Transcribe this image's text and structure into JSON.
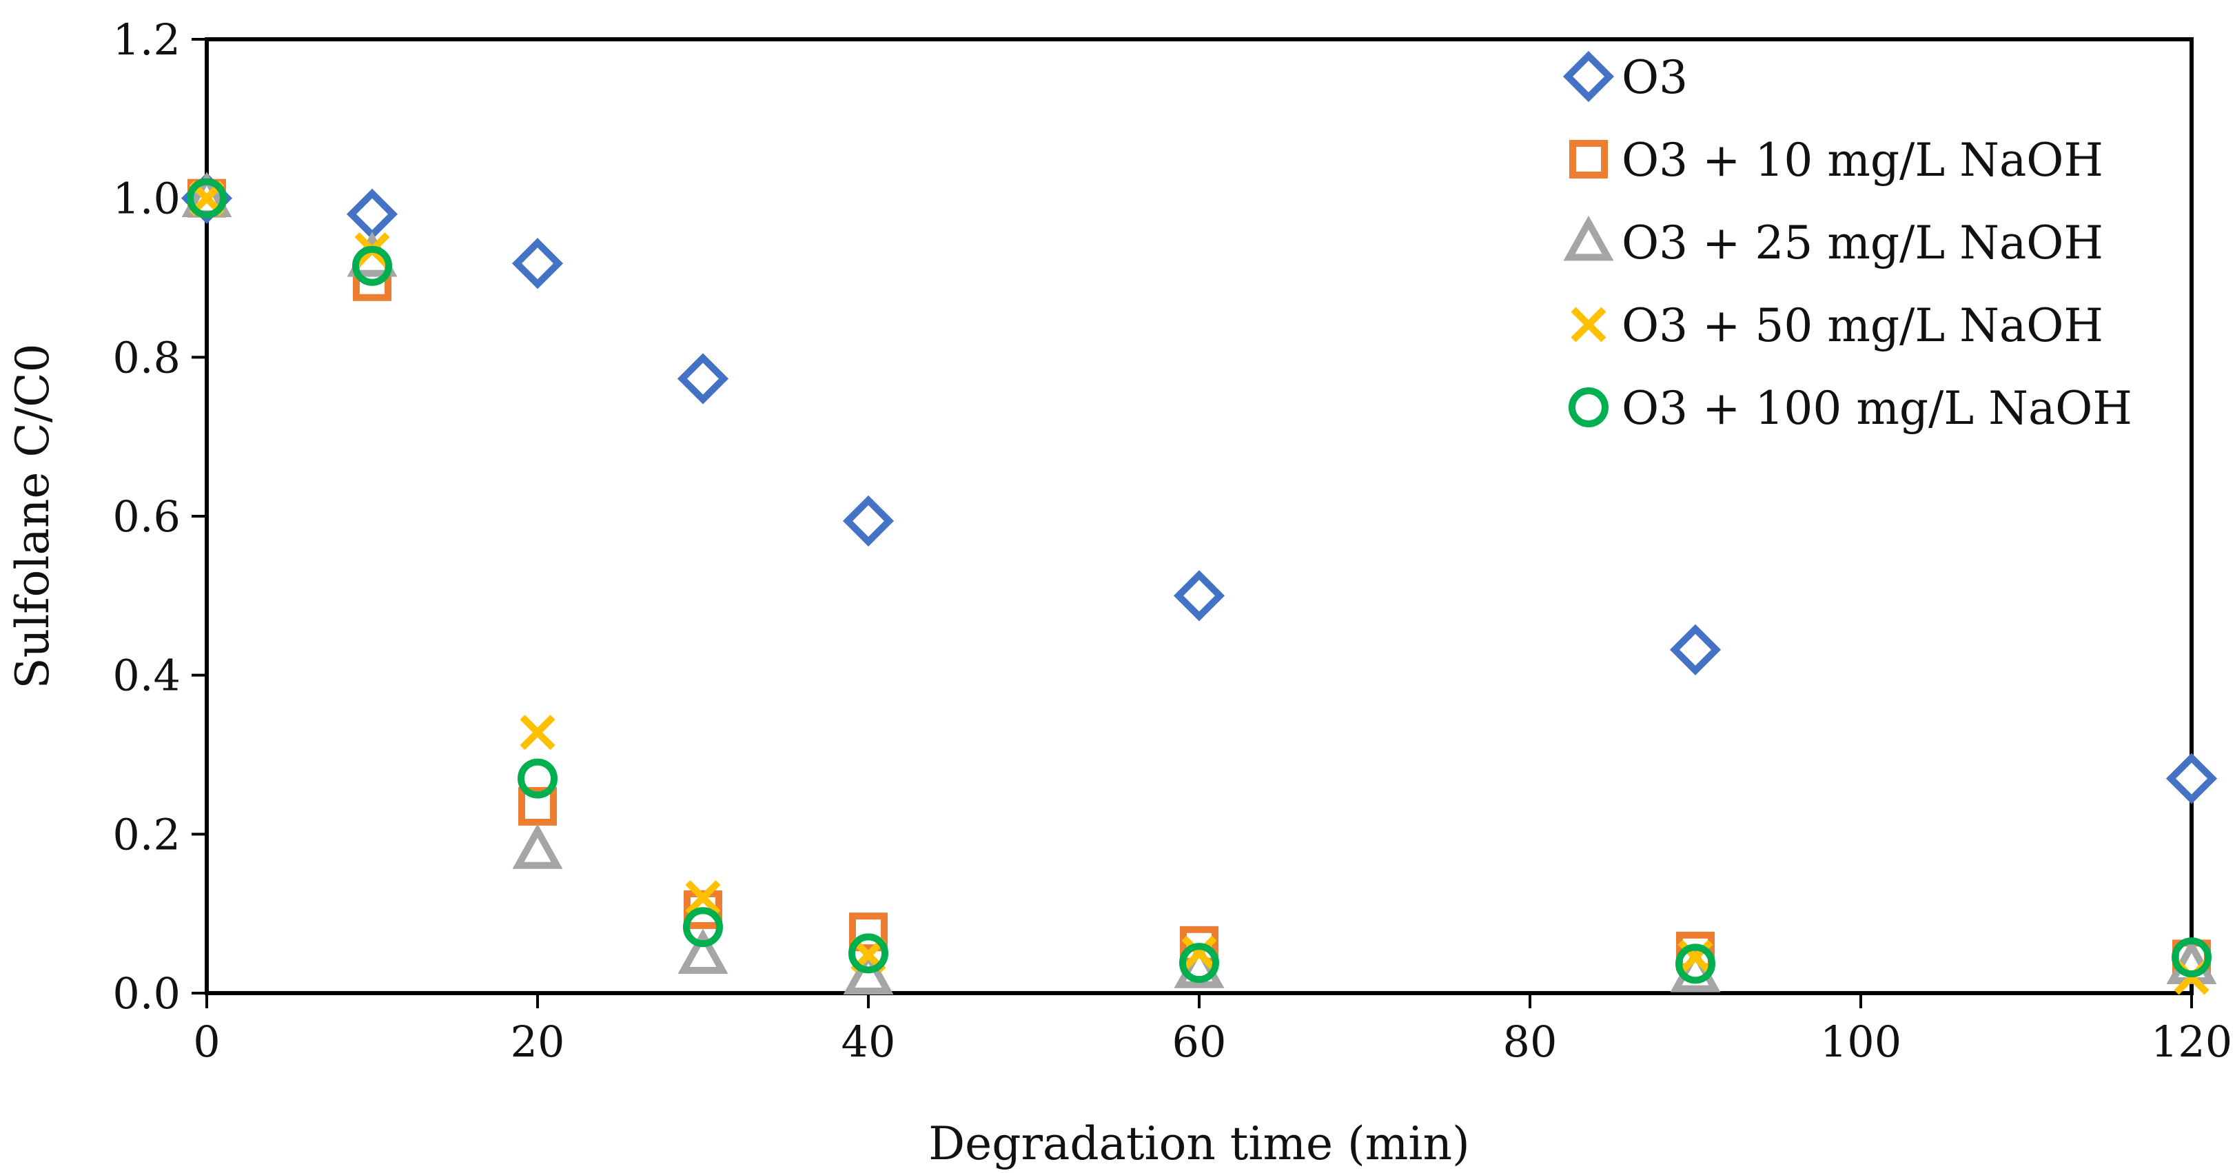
{
  "chart_data": {
    "type": "scatter",
    "title": "",
    "xlabel": "Degradation time (min)",
    "ylabel": "Sulfolane C/C0",
    "xlim": [
      0,
      120
    ],
    "ylim": [
      0.0,
      1.2
    ],
    "x_ticks": [
      "0",
      "20",
      "40",
      "60",
      "80",
      "100",
      "120"
    ],
    "y_ticks": [
      "0.0",
      "0.2",
      "0.4",
      "0.6",
      "0.8",
      "1.0",
      "1.2"
    ],
    "grid": false,
    "legend_position": "top-right",
    "series": [
      {
        "name": "O3",
        "marker": "diamond",
        "color": "#4472C4",
        "x": [
          0,
          10,
          20,
          30,
          40,
          60,
          90,
          120
        ],
        "y": [
          1.0,
          0.98,
          0.918,
          0.773,
          0.594,
          0.5,
          0.432,
          0.27
        ]
      },
      {
        "name": "O3 + 10 mg/L NaOH",
        "marker": "square",
        "color": "#ED7D31",
        "x": [
          0,
          10,
          20,
          30,
          40,
          60,
          90,
          120
        ],
        "y": [
          1.0,
          0.895,
          0.235,
          0.105,
          0.077,
          0.06,
          0.053,
          0.043
        ]
      },
      {
        "name": "O3 + 25 mg/L NaOH",
        "marker": "triangle",
        "color": "#A5A5A5",
        "x": [
          0,
          10,
          20,
          30,
          40,
          60,
          90,
          120
        ],
        "y": [
          1.0,
          0.925,
          0.18,
          0.048,
          0.022,
          0.03,
          0.025,
          0.035
        ]
      },
      {
        "name": "O3 + 50 mg/L NaOH",
        "marker": "x",
        "color": "#FFC000",
        "x": [
          0,
          10,
          20,
          30,
          40,
          60,
          90,
          120
        ],
        "y": [
          1.0,
          0.935,
          0.328,
          0.12,
          0.048,
          0.05,
          0.045,
          0.02
        ]
      },
      {
        "name": "O3 + 100 mg/L NaOH",
        "marker": "circle",
        "color": "#00B050",
        "x": [
          0,
          10,
          20,
          30,
          40,
          60,
          90,
          120
        ],
        "y": [
          1.0,
          0.915,
          0.27,
          0.083,
          0.05,
          0.038,
          0.037,
          0.045
        ]
      }
    ]
  }
}
